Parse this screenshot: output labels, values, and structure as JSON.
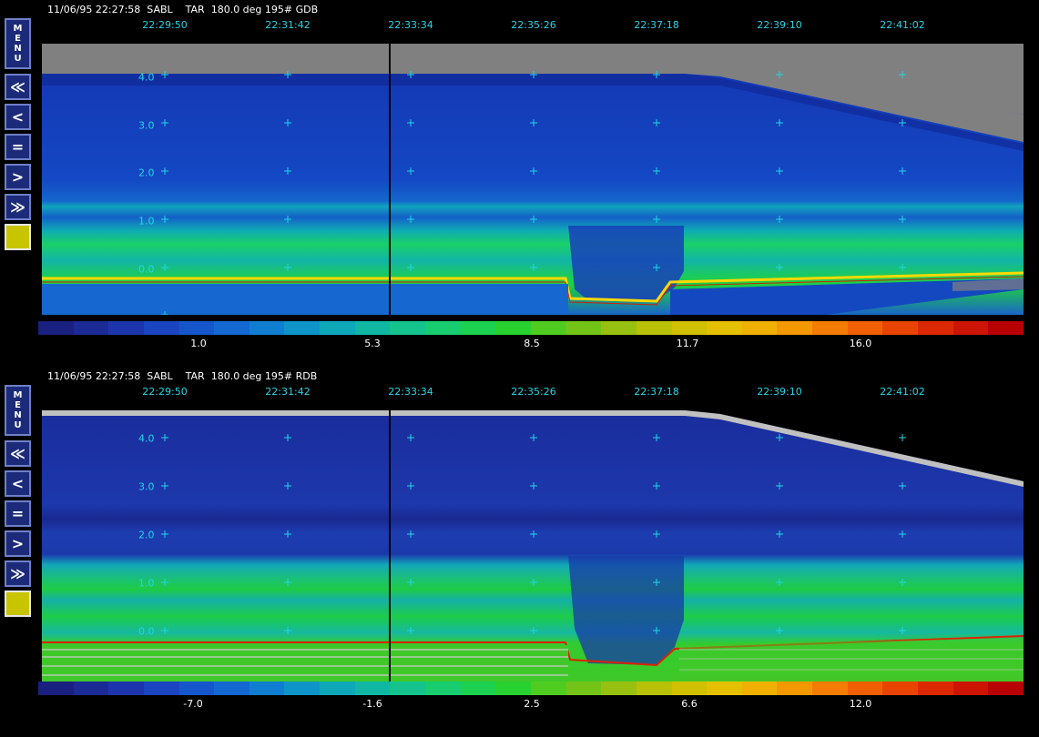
{
  "panels": [
    {
      "header": "11/06/95 22:27:58  SABL    TAR  180.0 deg 195# GDB",
      "times": [
        "22:29:50",
        "22:31:42",
        "22:33:34",
        "22:35:26",
        "22:37:18",
        "22:39:10",
        "22:41:02"
      ],
      "ylabels": [
        "4.0",
        "3.0",
        "2.0",
        "1.0",
        "0.0"
      ],
      "colorbar_labels": [
        "1.0",
        "5.3",
        "8.5",
        "11.7",
        "16.0"
      ]
    },
    {
      "header": "11/06/95 22:27:58  SABL    TAR  180.0 deg 195# RDB",
      "times": [
        "22:29:50",
        "22:31:42",
        "22:33:34",
        "22:35:26",
        "22:37:18",
        "22:39:10",
        "22:41:02"
      ],
      "ylabels": [
        "4.0",
        "3.0",
        "2.0",
        "1.0",
        "0.0"
      ],
      "colorbar_labels": [
        "-7.0",
        "-1.6",
        "2.5",
        "6.6",
        "12.0"
      ]
    }
  ],
  "toolbar": {
    "menu_letters": [
      "M",
      "E",
      "N",
      "U"
    ],
    "fast_back": "≪",
    "back": "<",
    "equal": "=",
    "forward": ">",
    "fast_forward": "≫"
  },
  "colors": {
    "time_label": "#22d6e6",
    "grid_cross": "#22d6e6",
    "ground_top": "#ffd800",
    "ground_bottom": "#d02000",
    "colormap": [
      "#1a2080",
      "#1c2a96",
      "#1c35ac",
      "#1a44c0",
      "#1656cc",
      "#1468d2",
      "#107ed0",
      "#0e94c8",
      "#0ea8b8",
      "#10b8a4",
      "#14c48c",
      "#18cc70",
      "#1cd050",
      "#28d030",
      "#50cc20",
      "#74c418",
      "#98c010",
      "#b8c008",
      "#d0c000",
      "#e4c000",
      "#f0b000",
      "#f49800",
      "#f47c00",
      "#f06000",
      "#e84400",
      "#dc2800",
      "#cc1400",
      "#b80000"
    ]
  }
}
